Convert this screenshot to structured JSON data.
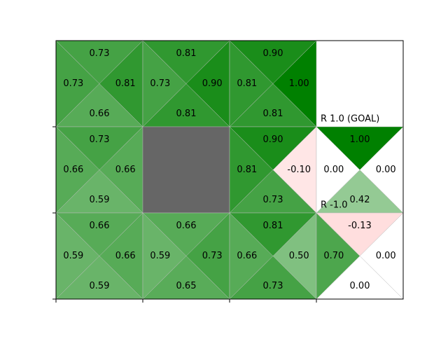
{
  "chart_data": {
    "type": "gridworld",
    "positive_color": "#008000",
    "negative_color": "#ff0000",
    "wall_color": "#666666",
    "rows": [
      [
        {
          "q": [
            0.73,
            0.73,
            0.81,
            0.66
          ],
          "q_labels": [
            "0.73",
            "0.73",
            "0.81",
            "0.66"
          ]
        },
        {
          "q": [
            0.81,
            0.73,
            0.9,
            0.81
          ],
          "q_labels": [
            "0.81",
            "0.73",
            "0.90",
            "0.81"
          ]
        },
        {
          "q": [
            0.9,
            0.81,
            1.0,
            0.81
          ],
          "q_labels": [
            "0.90",
            "0.81",
            "1.00",
            "0.81"
          ]
        },
        {
          "label": "R 1.0 (GOAL)"
        }
      ],
      [
        {
          "q": [
            0.73,
            0.66,
            0.66,
            0.59
          ],
          "q_labels": [
            "0.73",
            "0.66",
            "0.66",
            "0.59"
          ]
        },
        {
          "wall": true
        },
        {
          "q": [
            0.9,
            0.81,
            -0.1,
            0.73
          ],
          "q_labels": [
            "0.90",
            "0.81",
            "-0.10",
            "0.73"
          ]
        },
        {
          "q": [
            1.0,
            0.0,
            0.0,
            0.42
          ],
          "q_labels": [
            "1.00",
            "0.00",
            "0.00",
            "0.42"
          ],
          "label": "R -1.0"
        }
      ],
      [
        {
          "q": [
            0.66,
            0.59,
            0.66,
            0.59
          ],
          "q_labels": [
            "0.66",
            "0.59",
            "0.66",
            "0.59"
          ]
        },
        {
          "q": [
            0.66,
            0.59,
            0.73,
            0.65
          ],
          "q_labels": [
            "0.66",
            "0.59",
            "0.73",
            "0.65"
          ]
        },
        {
          "q": [
            0.81,
            0.66,
            0.5,
            0.73
          ],
          "q_labels": [
            "0.81",
            "0.66",
            "0.50",
            "0.73"
          ]
        },
        {
          "q": [
            -0.13,
            0.7,
            0.0,
            0.0
          ],
          "q_labels": [
            "-0.13",
            "0.70",
            "0.00",
            "0.00"
          ]
        }
      ]
    ]
  }
}
